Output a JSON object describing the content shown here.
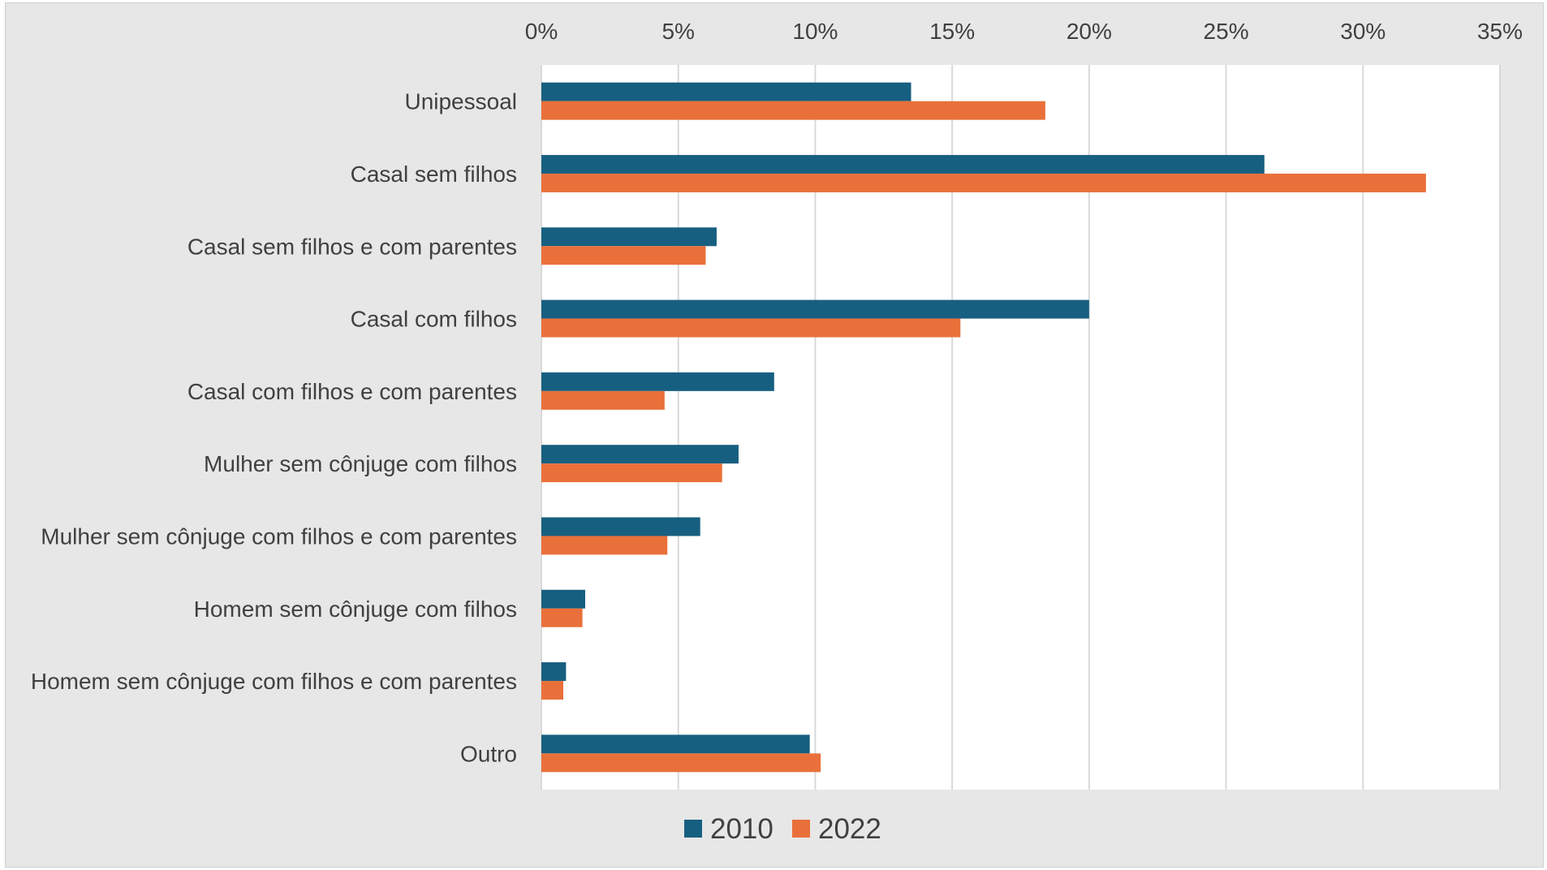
{
  "chart_data": {
    "type": "bar",
    "orientation": "horizontal",
    "categories": [
      "Unipessoal",
      "Casal sem filhos",
      "Casal sem filhos e com parentes",
      "Casal com filhos",
      "Casal com filhos e com parentes",
      "Mulher sem cônjuge com filhos",
      "Mulher sem cônjuge com filhos e com parentes",
      "Homem sem cônjuge com filhos",
      "Homem sem cônjuge com filhos e com parentes",
      "Outro"
    ],
    "series": [
      {
        "name": "2010",
        "color": "#175f80",
        "values": [
          13.5,
          26.4,
          6.4,
          20.0,
          8.5,
          7.2,
          5.8,
          1.6,
          0.9,
          9.8
        ]
      },
      {
        "name": "2022",
        "color": "#e9703a",
        "values": [
          18.4,
          32.3,
          6.0,
          15.3,
          4.5,
          6.6,
          4.6,
          1.5,
          0.8,
          10.2
        ]
      }
    ],
    "xlim": [
      0,
      35
    ],
    "xticks": [
      "0%",
      "5%",
      "10%",
      "15%",
      "20%",
      "25%",
      "30%",
      "35%"
    ],
    "xtick_values": [
      0,
      5,
      10,
      15,
      20,
      25,
      30,
      35
    ],
    "x_axis_position": "top",
    "grid": true,
    "legend_position": "bottom",
    "title": "",
    "xlabel": "",
    "ylabel": ""
  }
}
